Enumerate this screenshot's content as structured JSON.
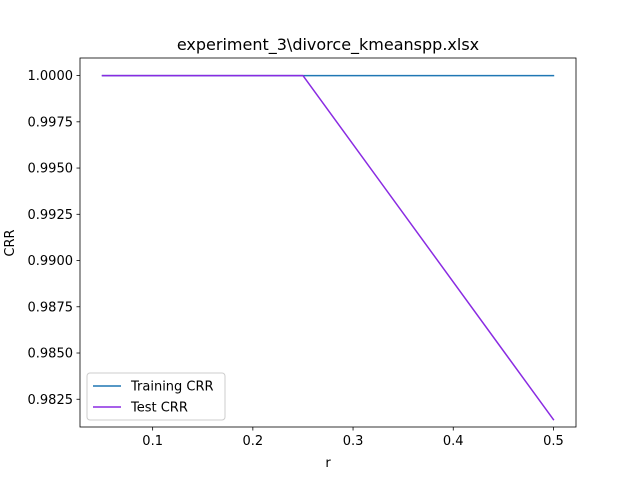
{
  "chart_data": {
    "type": "line",
    "title": "experiment_3\\divorce_kmeanspp.xlsx",
    "xlabel": "r",
    "ylabel": "CRR",
    "xlim": [
      0.0275,
      0.5225
    ],
    "ylim": [
      0.981,
      1.00095
    ],
    "x_ticks": [
      0.1,
      0.2,
      0.3,
      0.4,
      0.5
    ],
    "x_tick_labels": [
      "0.1",
      "0.2",
      "0.3",
      "0.4",
      "0.5"
    ],
    "y_ticks": [
      0.9825,
      0.985,
      0.9875,
      0.99,
      0.9925,
      0.995,
      0.9975,
      1.0
    ],
    "y_tick_labels": [
      "0.9825",
      "0.9850",
      "0.9875",
      "0.9900",
      "0.9925",
      "0.9950",
      "0.9975",
      "1.0000"
    ],
    "grid": false,
    "legend_position": "lower-left",
    "series": [
      {
        "name": "Training CRR",
        "color": "#1f77b4",
        "x": [
          0.05,
          0.1,
          0.15,
          0.2,
          0.25,
          0.3,
          0.35,
          0.4,
          0.45,
          0.5
        ],
        "y": [
          1.0,
          1.0,
          1.0,
          1.0,
          1.0,
          1.0,
          1.0,
          1.0,
          1.0,
          1.0
        ]
      },
      {
        "name": "Test CRR",
        "color": "#8a2be2",
        "x": [
          0.05,
          0.1,
          0.15,
          0.2,
          0.25,
          0.5
        ],
        "y": [
          1.0,
          1.0,
          1.0,
          1.0,
          1.0,
          0.9814
        ]
      }
    ]
  }
}
